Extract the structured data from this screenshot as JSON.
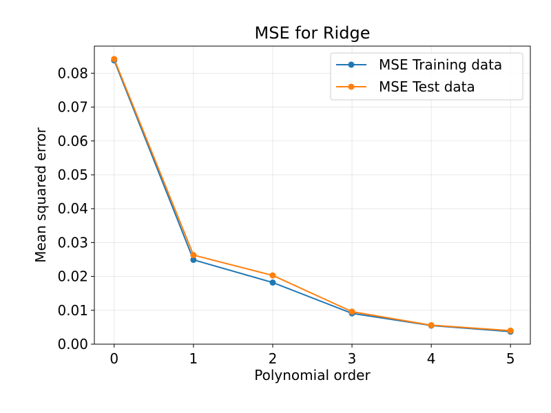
{
  "chart_data": {
    "type": "line",
    "title": "MSE for Ridge",
    "xlabel": "Polynomial order",
    "ylabel": "Mean squared error",
    "x": [
      0,
      1,
      2,
      3,
      4,
      5
    ],
    "x_ticks": [
      "0",
      "1",
      "2",
      "3",
      "4",
      "5"
    ],
    "y_ticks": [
      "0.00",
      "0.01",
      "0.02",
      "0.03",
      "0.04",
      "0.05",
      "0.06",
      "0.07",
      "0.08"
    ],
    "xlim": [
      -0.25,
      5.25
    ],
    "ylim": [
      0,
      0.088
    ],
    "grid": true,
    "legend_position": "top-right",
    "series": [
      {
        "name": "MSE Training data",
        "color": "#1f77b4",
        "values": [
          0.0838,
          0.0249,
          0.0182,
          0.0091,
          0.0055,
          0.0037
        ]
      },
      {
        "name": "MSE Test data",
        "color": "#ff7f0e",
        "values": [
          0.0842,
          0.0263,
          0.0203,
          0.0096,
          0.0056,
          0.004
        ]
      }
    ]
  }
}
